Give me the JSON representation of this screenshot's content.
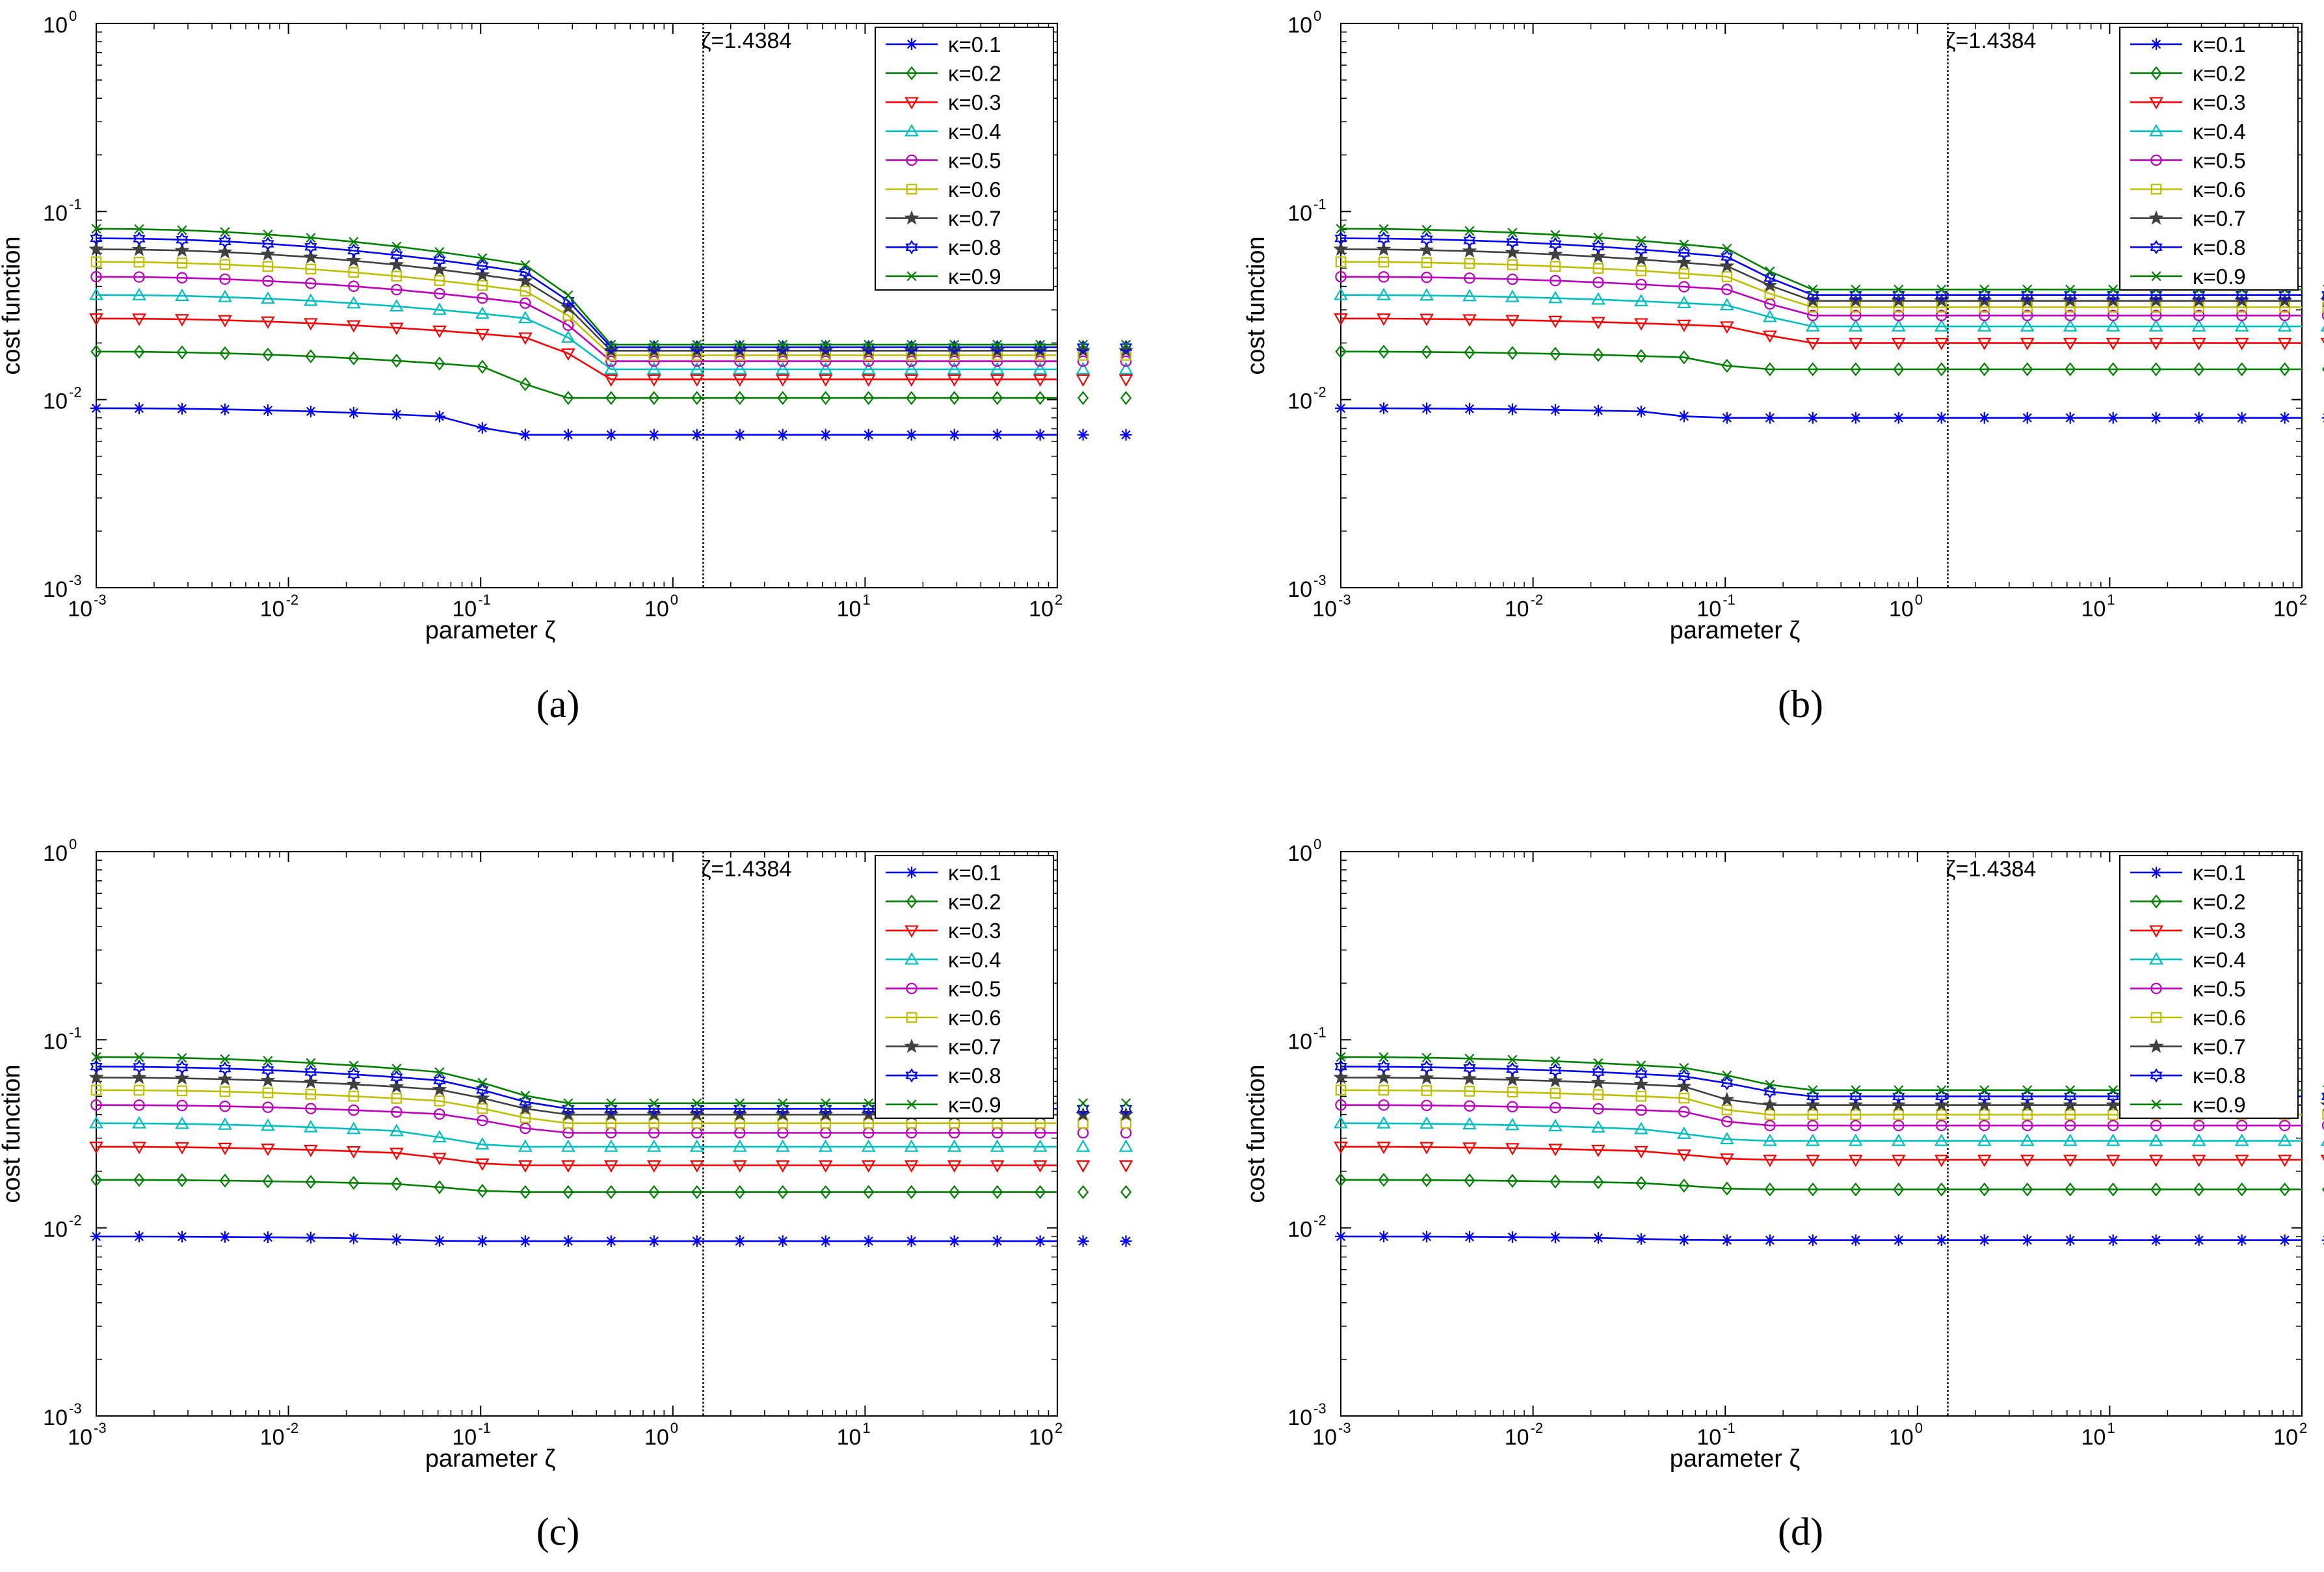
{
  "chart_data": [
    {
      "panel": "a",
      "caption": "(a)",
      "type": "line",
      "xlabel": "parameter ζ",
      "ylabel": "cost function",
      "xscale": "log",
      "yscale": "log",
      "xlim": [
        0.001,
        100
      ],
      "ylim": [
        0.001,
        1
      ],
      "x_ticks": [
        "10",
        "10",
        "10",
        "10",
        "10",
        "10"
      ],
      "x_tick_exps": [
        "-3",
        "-2",
        "-1",
        "0",
        "1",
        "2"
      ],
      "y_ticks": [
        "10",
        "10",
        "10",
        "10"
      ],
      "y_tick_exps": [
        "-3",
        "-2",
        "-1",
        "0"
      ],
      "annotation": {
        "x": 1.4384,
        "text": "ζ=1.4384"
      },
      "legend_position": "top-right",
      "series": [
        {
          "name": "κ=0.1",
          "color": "#0000ff",
          "marker": "star",
          "start": 0.009,
          "end": 0.0065,
          "ramp": [
            0.08,
            0.12
          ]
        },
        {
          "name": "κ=0.2",
          "color": "#008000",
          "marker": "diamond",
          "start": 0.018,
          "end": 0.0102,
          "ramp": [
            0.12,
            0.23
          ]
        },
        {
          "name": "κ=0.3",
          "color": "#ff0000",
          "marker": "triangle-down",
          "start": 0.027,
          "end": 0.0128,
          "ramp": [
            0.23,
            0.43
          ]
        },
        {
          "name": "κ=0.4",
          "color": "#00bfbf",
          "marker": "triangle-up",
          "start": 0.036,
          "end": 0.0145,
          "ramp": [
            0.23,
            0.43
          ]
        },
        {
          "name": "κ=0.5",
          "color": "#bf00bf",
          "marker": "circle",
          "start": 0.045,
          "end": 0.016,
          "ramp": [
            0.23,
            0.43
          ]
        },
        {
          "name": "κ=0.6",
          "color": "#bfbf00",
          "marker": "square",
          "start": 0.054,
          "end": 0.0172,
          "ramp": [
            0.23,
            0.43
          ]
        },
        {
          "name": "κ=0.7",
          "color": "#404040",
          "marker": "pentagram",
          "start": 0.063,
          "end": 0.0182,
          "ramp": [
            0.23,
            0.43
          ]
        },
        {
          "name": "κ=0.8",
          "color": "#0000ff",
          "marker": "hexagram",
          "start": 0.072,
          "end": 0.019,
          "ramp": [
            0.23,
            0.43
          ]
        },
        {
          "name": "κ=0.9",
          "color": "#008000",
          "marker": "x",
          "start": 0.081,
          "end": 0.0196,
          "ramp": [
            0.23,
            0.43
          ]
        }
      ]
    },
    {
      "panel": "b",
      "caption": "(b)",
      "type": "line",
      "xlabel": "parameter ζ",
      "ylabel": "cost function",
      "xscale": "log",
      "yscale": "log",
      "xlim": [
        0.001,
        100
      ],
      "ylim": [
        0.001,
        1
      ],
      "x_ticks": [
        "10",
        "10",
        "10",
        "10",
        "10",
        "10"
      ],
      "x_tick_exps": [
        "-3",
        "-2",
        "-1",
        "0",
        "1",
        "2"
      ],
      "y_ticks": [
        "10",
        "10",
        "10",
        "10"
      ],
      "y_tick_exps": [
        "-3",
        "-2",
        "-1",
        "0"
      ],
      "annotation": {
        "x": 1.4384,
        "text": "ζ=1.4384"
      },
      "legend_position": "top-right",
      "series": [
        {
          "name": "κ=0.1",
          "color": "#0000ff",
          "marker": "star",
          "start": 0.009,
          "end": 0.008,
          "ramp": [
            0.04,
            0.07
          ]
        },
        {
          "name": "κ=0.2",
          "color": "#008000",
          "marker": "diamond",
          "start": 0.018,
          "end": 0.0145,
          "ramp": [
            0.07,
            0.12
          ]
        },
        {
          "name": "κ=0.3",
          "color": "#ff0000",
          "marker": "triangle-down",
          "start": 0.027,
          "end": 0.02,
          "ramp": [
            0.12,
            0.23
          ]
        },
        {
          "name": "κ=0.4",
          "color": "#00bfbf",
          "marker": "triangle-up",
          "start": 0.036,
          "end": 0.0245,
          "ramp": [
            0.12,
            0.23
          ]
        },
        {
          "name": "κ=0.5",
          "color": "#bf00bf",
          "marker": "circle",
          "start": 0.045,
          "end": 0.028,
          "ramp": [
            0.12,
            0.23
          ]
        },
        {
          "name": "κ=0.6",
          "color": "#bfbf00",
          "marker": "square",
          "start": 0.054,
          "end": 0.031,
          "ramp": [
            0.12,
            0.23
          ]
        },
        {
          "name": "κ=0.7",
          "color": "#404040",
          "marker": "pentagram",
          "start": 0.063,
          "end": 0.0335,
          "ramp": [
            0.12,
            0.23
          ]
        },
        {
          "name": "κ=0.8",
          "color": "#0000ff",
          "marker": "hexagram",
          "start": 0.072,
          "end": 0.036,
          "ramp": [
            0.12,
            0.23
          ]
        },
        {
          "name": "κ=0.9",
          "color": "#008000",
          "marker": "x",
          "start": 0.081,
          "end": 0.0385,
          "ramp": [
            0.12,
            0.23
          ]
        }
      ]
    },
    {
      "panel": "c",
      "caption": "(c)",
      "type": "line",
      "xlabel": "parameter ζ",
      "ylabel": "cost function",
      "xscale": "log",
      "yscale": "log",
      "xlim": [
        0.001,
        100
      ],
      "ylim": [
        0.001,
        1
      ],
      "x_ticks": [
        "10",
        "10",
        "10",
        "10",
        "10",
        "10"
      ],
      "x_tick_exps": [
        "-3",
        "-2",
        "-1",
        "0",
        "1",
        "2"
      ],
      "y_ticks": [
        "10",
        "10",
        "10",
        "10"
      ],
      "y_tick_exps": [
        "-3",
        "-2",
        "-1",
        "0"
      ],
      "annotation": {
        "x": 1.4384,
        "text": "ζ=1.4384"
      },
      "legend_position": "top-right",
      "series": [
        {
          "name": "κ=0.1",
          "color": "#0000ff",
          "marker": "star",
          "start": 0.009,
          "end": 0.0085,
          "ramp": [
            0.02,
            0.07
          ]
        },
        {
          "name": "κ=0.2",
          "color": "#008000",
          "marker": "diamond",
          "start": 0.018,
          "end": 0.0155,
          "ramp": [
            0.04,
            0.12
          ]
        },
        {
          "name": "κ=0.3",
          "color": "#ff0000",
          "marker": "triangle-down",
          "start": 0.027,
          "end": 0.0215,
          "ramp": [
            0.04,
            0.12
          ]
        },
        {
          "name": "κ=0.4",
          "color": "#00bfbf",
          "marker": "triangle-up",
          "start": 0.036,
          "end": 0.027,
          "ramp": [
            0.04,
            0.12
          ]
        },
        {
          "name": "κ=0.5",
          "color": "#bf00bf",
          "marker": "circle",
          "start": 0.045,
          "end": 0.032,
          "ramp": [
            0.07,
            0.23
          ]
        },
        {
          "name": "κ=0.6",
          "color": "#bfbf00",
          "marker": "square",
          "start": 0.054,
          "end": 0.036,
          "ramp": [
            0.07,
            0.23
          ]
        },
        {
          "name": "κ=0.7",
          "color": "#404040",
          "marker": "pentagram",
          "start": 0.063,
          "end": 0.04,
          "ramp": [
            0.07,
            0.23
          ]
        },
        {
          "name": "κ=0.8",
          "color": "#0000ff",
          "marker": "hexagram",
          "start": 0.072,
          "end": 0.043,
          "ramp": [
            0.07,
            0.23
          ]
        },
        {
          "name": "κ=0.9",
          "color": "#008000",
          "marker": "x",
          "start": 0.081,
          "end": 0.046,
          "ramp": [
            0.07,
            0.23
          ]
        }
      ]
    },
    {
      "panel": "d",
      "caption": "(d)",
      "type": "line",
      "xlabel": "parameter ζ",
      "ylabel": "cost function",
      "xscale": "log",
      "yscale": "log",
      "xlim": [
        0.001,
        100
      ],
      "ylim": [
        0.001,
        1
      ],
      "x_ticks": [
        "10",
        "10",
        "10",
        "10",
        "10",
        "10"
      ],
      "x_tick_exps": [
        "-3",
        "-2",
        "-1",
        "0",
        "1",
        "2"
      ],
      "y_ticks": [
        "10",
        "10",
        "10",
        "10"
      ],
      "y_tick_exps": [
        "-3",
        "-2",
        "-1",
        "0"
      ],
      "annotation": {
        "x": 1.4384,
        "text": "ζ=1.4384"
      },
      "legend_position": "top-right",
      "series": [
        {
          "name": "κ=0.1",
          "color": "#0000ff",
          "marker": "star",
          "start": 0.009,
          "end": 0.0086,
          "ramp": [
            0.02,
            0.07
          ]
        },
        {
          "name": "κ=0.2",
          "color": "#008000",
          "marker": "diamond",
          "start": 0.018,
          "end": 0.016,
          "ramp": [
            0.04,
            0.12
          ]
        },
        {
          "name": "κ=0.3",
          "color": "#ff0000",
          "marker": "triangle-down",
          "start": 0.027,
          "end": 0.023,
          "ramp": [
            0.04,
            0.12
          ]
        },
        {
          "name": "κ=0.4",
          "color": "#00bfbf",
          "marker": "triangle-up",
          "start": 0.036,
          "end": 0.029,
          "ramp": [
            0.04,
            0.12
          ]
        },
        {
          "name": "κ=0.5",
          "color": "#bf00bf",
          "marker": "circle",
          "start": 0.045,
          "end": 0.035,
          "ramp": [
            0.07,
            0.12
          ]
        },
        {
          "name": "κ=0.6",
          "color": "#bfbf00",
          "marker": "square",
          "start": 0.054,
          "end": 0.04,
          "ramp": [
            0.07,
            0.12
          ]
        },
        {
          "name": "κ=0.7",
          "color": "#404040",
          "marker": "pentagram",
          "start": 0.063,
          "end": 0.045,
          "ramp": [
            0.07,
            0.12
          ]
        },
        {
          "name": "κ=0.8",
          "color": "#0000ff",
          "marker": "hexagram",
          "start": 0.072,
          "end": 0.05,
          "ramp": [
            0.07,
            0.23
          ]
        },
        {
          "name": "κ=0.9",
          "color": "#008000",
          "marker": "x",
          "start": 0.081,
          "end": 0.054,
          "ramp": [
            0.07,
            0.23
          ]
        }
      ]
    }
  ]
}
